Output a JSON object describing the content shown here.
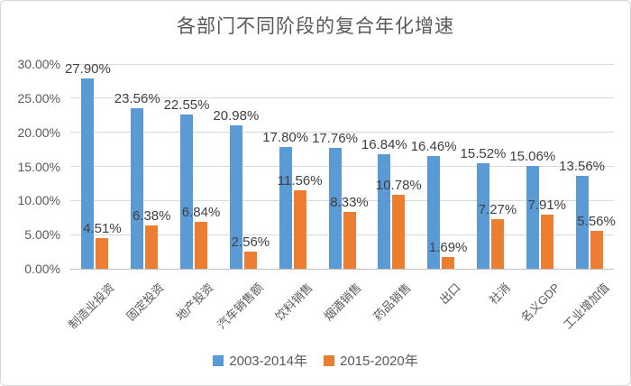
{
  "frame": {
    "background": "#ffffff",
    "border_color": "#d6d6d6"
  },
  "chart_data": {
    "type": "bar",
    "title": "各部门不同阶段的复合年化增速",
    "categories": [
      "制造业投资",
      "固定投资",
      "地产投资",
      "汽车销售额",
      "饮料销售",
      "烟酒销售",
      "药品销售",
      "出口",
      "社消",
      "名义GDP",
      "工业增加值"
    ],
    "series": [
      {
        "name": "2003-2014年",
        "color": "#5B9BD5",
        "values": [
          27.9,
          23.56,
          22.55,
          20.98,
          17.8,
          17.76,
          16.84,
          16.46,
          15.52,
          15.06,
          13.56
        ]
      },
      {
        "name": "2015-2020年",
        "color": "#ED7D31",
        "values": [
          4.51,
          6.38,
          6.84,
          2.56,
          11.56,
          8.33,
          10.78,
          1.69,
          7.27,
          7.91,
          5.56
        ]
      }
    ],
    "data_label_format": "0.00%",
    "y_axis": {
      "min": 0,
      "max": 30,
      "step": 5,
      "tick_labels": [
        "0.00%",
        "5.00%",
        "10.00%",
        "15.00%",
        "20.00%",
        "25.00%",
        "30.00%"
      ]
    },
    "grid": true,
    "legend_position": "bottom",
    "text_colors": {
      "title": "#595959",
      "axis": "#595959",
      "data_label": "#3f3f3f"
    },
    "gridline_color": "#d9d9d9",
    "axis_line_color": "#bfbfbf"
  }
}
